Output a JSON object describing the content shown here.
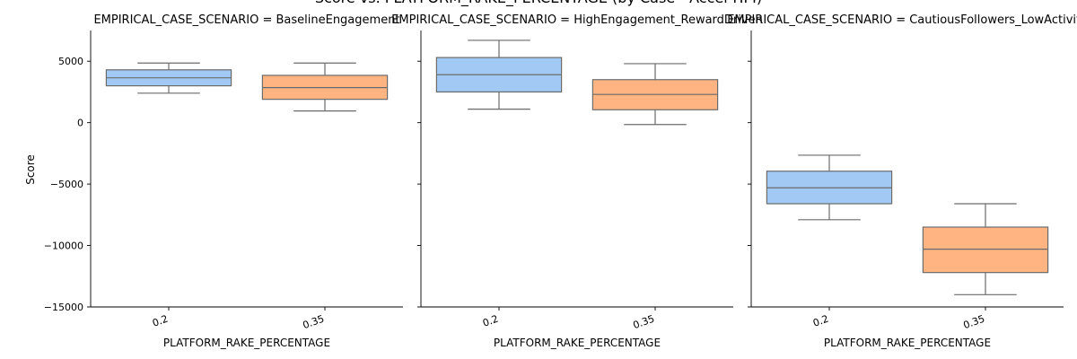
{
  "figure": {
    "suptitle": "Score vs. PLATFORM_RAKE_PERCENTAGE (by Case - Accel-HPI)"
  },
  "chart_data": {
    "type": "box",
    "ylabel": "Score",
    "xlabel": "PLATFORM_RAKE_PERCENTAGE",
    "ylim": [
      -15000,
      7500
    ],
    "yticks": [
      -15000,
      -10000,
      -5000,
      0,
      5000
    ],
    "yticks_text": [
      "−15000",
      "−10000",
      "−5000",
      "0",
      "5000"
    ],
    "categories": [
      "0.2",
      "0.35"
    ],
    "colors": {
      "0.2": "#a1c9f4",
      "0.35": "#ffb482",
      "line": "#6b6b6b"
    },
    "panels": [
      {
        "title": "EMPIRICAL_CASE_SCENARIO = BaselineEngagement",
        "boxes": [
          {
            "category": "0.2",
            "whislo": 2400,
            "q1": 3000,
            "med": 3650,
            "q3": 4300,
            "whishi": 4850
          },
          {
            "category": "0.35",
            "whislo": 950,
            "q1": 1900,
            "med": 2850,
            "q3": 3850,
            "whishi": 4850
          }
        ]
      },
      {
        "title": "EMPIRICAL_CASE_SCENARIO = HighEngagement_RewardDriven",
        "boxes": [
          {
            "category": "0.2",
            "whislo": 1100,
            "q1": 2500,
            "med": 3900,
            "q3": 5300,
            "whishi": 6700
          },
          {
            "category": "0.35",
            "whislo": -150,
            "q1": 1050,
            "med": 2300,
            "q3": 3500,
            "whishi": 4800
          }
        ]
      },
      {
        "title": "EMPIRICAL_CASE_SCENARIO = CautiousFollowers_LowActivity",
        "boxes": [
          {
            "category": "0.2",
            "whislo": -7900,
            "q1": -6600,
            "med": -5300,
            "q3": -3950,
            "whishi": -2650
          },
          {
            "category": "0.35",
            "whislo": -14000,
            "q1": -12200,
            "med": -10300,
            "q3": -8500,
            "whishi": -6600
          }
        ]
      }
    ]
  }
}
